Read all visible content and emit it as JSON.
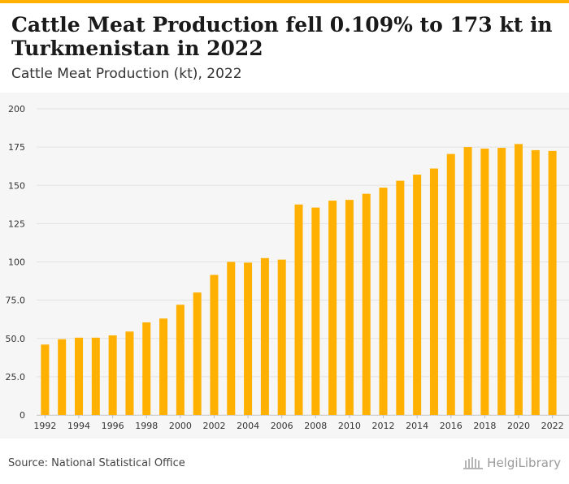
{
  "header": {
    "title": "Cattle Meat Production fell 0.109% to 173 kt in Turkmenistan in 2022",
    "subtitle": "Cattle Meat Production (kt), 2022"
  },
  "footer": {
    "source": "Source: National Statistical Office",
    "logo_text": "HelgiLibrary"
  },
  "colors": {
    "bar": "#ffb000",
    "accent": "#ffb000",
    "grid": "#e2e2e2",
    "tick_text": "#333333"
  },
  "chart_data": {
    "type": "bar",
    "categories": [
      "1992",
      "1993",
      "1994",
      "1995",
      "1996",
      "1997",
      "1998",
      "1999",
      "2000",
      "2001",
      "2002",
      "2003",
      "2004",
      "2005",
      "2006",
      "2007",
      "2008",
      "2009",
      "2010",
      "2011",
      "2012",
      "2013",
      "2014",
      "2015",
      "2016",
      "2017",
      "2018",
      "2019",
      "2020",
      "2021",
      "2022"
    ],
    "values": [
      46,
      49.5,
      50.5,
      50.5,
      52,
      54.5,
      60.5,
      63,
      72,
      80,
      91.5,
      100,
      99.5,
      102.5,
      101.5,
      137.5,
      135.5,
      140,
      140.5,
      144.5,
      148.5,
      153,
      157,
      161,
      170.5,
      175,
      174,
      174.5,
      177,
      173,
      172.5
    ],
    "x_tick_labels": [
      "1992",
      "1994",
      "1996",
      "1998",
      "2000",
      "2002",
      "2004",
      "2006",
      "2008",
      "2010",
      "2012",
      "2014",
      "2016",
      "2018",
      "2020",
      "2022"
    ],
    "y_ticks": [
      0,
      25,
      50,
      75,
      100,
      125,
      150,
      175,
      200
    ],
    "y_tick_labels": [
      "0",
      "25.0",
      "50.0",
      "75.0",
      "100",
      "125",
      "150",
      "175",
      "200"
    ],
    "ylim": [
      0,
      200
    ],
    "grid": true,
    "legend": "none"
  }
}
